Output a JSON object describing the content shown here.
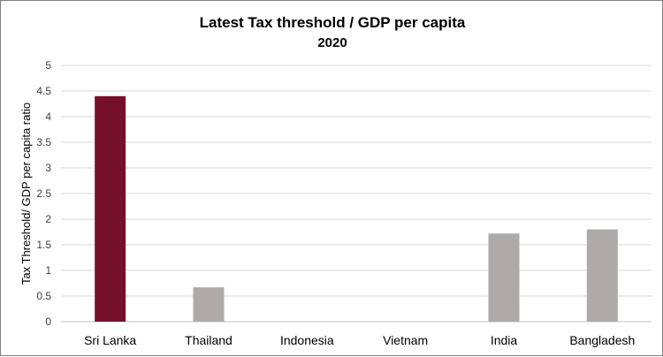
{
  "chart_data": {
    "type": "bar",
    "title": "Latest Tax threshold / GDP per capita",
    "subtitle": "2020",
    "xlabel": "",
    "ylabel": "Tax Threshold/ GDP per capita ratio",
    "categories": [
      "Sri Lanka",
      "Thailand",
      "Indonesia",
      "Vietnam",
      "India",
      "Bangladesh"
    ],
    "values": [
      4.4,
      0.67,
      0,
      0,
      1.72,
      1.8
    ],
    "ylim": [
      0,
      5
    ],
    "yticks": [
      "0",
      "0.5",
      "1",
      "1.5",
      "2",
      "2.5",
      "3",
      "3.5",
      "4",
      "4.5",
      "5"
    ],
    "grid": true,
    "colors": [
      "#76102a",
      "#aeaaaa",
      "#aeaaaa",
      "#aeaaaa",
      "#aeaaaa",
      "#aeaaaa"
    ]
  }
}
